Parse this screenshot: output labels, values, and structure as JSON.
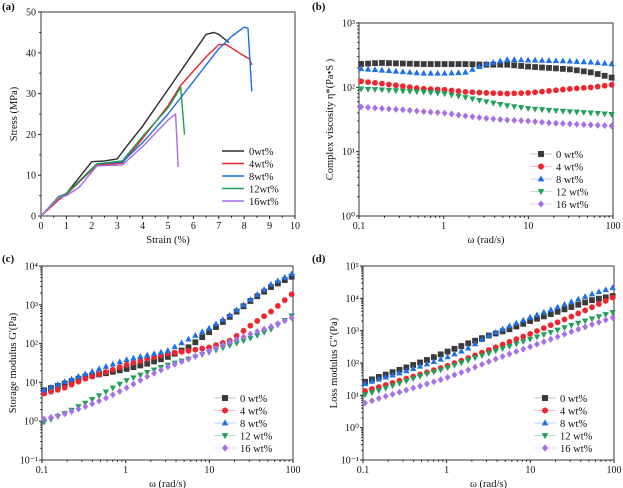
{
  "chart_data": [
    {
      "panel": "(a)",
      "type": "line",
      "xlabel": "Strain (%)",
      "ylabel": "Stress (MPa)",
      "xlim": [
        0,
        10
      ],
      "ylim": [
        0,
        50
      ],
      "xscale": "linear",
      "yscale": "linear",
      "xticks": [
        0,
        1,
        2,
        3,
        4,
        5,
        6,
        7,
        8,
        9,
        10
      ],
      "yticks": [
        0,
        10,
        20,
        30,
        40,
        50
      ],
      "legend_position": "bottom-right",
      "series": [
        {
          "name": "0wt%",
          "color": "#2b2b2b",
          "points": [
            [
              0,
              0
            ],
            [
              0.7,
              4.5
            ],
            [
              1,
              5.5
            ],
            [
              2,
              13.3
            ],
            [
              2.5,
              13.5
            ],
            [
              3,
              14
            ],
            [
              3.3,
              16.5
            ],
            [
              4,
              22
            ],
            [
              5,
              31
            ],
            [
              6,
              40
            ],
            [
              6.5,
              44.5
            ],
            [
              6.8,
              45
            ],
            [
              7,
              44.5
            ],
            [
              7.4,
              42.5
            ]
          ]
        },
        {
          "name": "4wt%",
          "color": "#e8222b",
          "points": [
            [
              0,
              0
            ],
            [
              0.7,
              4
            ],
            [
              1,
              5.3
            ],
            [
              2.2,
              12.5
            ],
            [
              3.2,
              13
            ],
            [
              4,
              19
            ],
            [
              5,
              27
            ],
            [
              5.5,
              32
            ],
            [
              6.5,
              39
            ],
            [
              7,
              42
            ],
            [
              7.3,
              42
            ],
            [
              7.8,
              40
            ],
            [
              8.2,
              38.5
            ],
            [
              8.3,
              37
            ]
          ]
        },
        {
          "name": "8wt%",
          "color": "#1d6fe3",
          "points": [
            [
              0,
              0
            ],
            [
              0.7,
              4.5
            ],
            [
              1,
              5.5
            ],
            [
              2.2,
              12.8
            ],
            [
              3.2,
              13.2
            ],
            [
              4,
              18
            ],
            [
              5,
              25
            ],
            [
              6,
              33
            ],
            [
              7,
              41
            ],
            [
              7.5,
              44
            ],
            [
              8,
              46.3
            ],
            [
              8.15,
              46
            ],
            [
              8.3,
              30.5
            ]
          ]
        },
        {
          "name": "12wt%",
          "color": "#1f9e52",
          "points": [
            [
              0,
              0
            ],
            [
              0.7,
              4.8
            ],
            [
              1,
              5.5
            ],
            [
              2.2,
              12.8
            ],
            [
              3.2,
              13.5
            ],
            [
              4,
              19.5
            ],
            [
              5,
              26.5
            ],
            [
              5.5,
              31.5
            ],
            [
              5.65,
              20
            ]
          ]
        },
        {
          "name": "16wt%",
          "color": "#a36ee8",
          "points": [
            [
              0,
              0
            ],
            [
              0.7,
              4.5
            ],
            [
              1,
              5
            ],
            [
              1.5,
              7
            ],
            [
              2.2,
              12.3
            ],
            [
              3.2,
              12.5
            ],
            [
              4,
              17
            ],
            [
              5,
              23.5
            ],
            [
              5.3,
              25
            ],
            [
              5.4,
              12
            ]
          ]
        }
      ]
    },
    {
      "panel": "(b)",
      "type": "scatter",
      "xlabel": "ω (rad/s)",
      "ylabel": "Complex viscosity η*(Pa•S )",
      "xlim": [
        0.1,
        100
      ],
      "ylim": [
        1,
        1000
      ],
      "xscale": "log",
      "yscale": "log",
      "xtick_labels": [
        "0.1",
        "1",
        "10",
        "100"
      ],
      "ytick_labels": [
        "10⁰",
        "10¹",
        "10²",
        "10³"
      ],
      "legend_position": "bottom-right",
      "x": [
        0.1,
        0.178,
        0.316,
        0.562,
        1,
        1.78,
        3.16,
        5.62,
        10,
        17.8,
        31.6,
        56.2,
        100
      ],
      "series": [
        {
          "name": "0 wt%",
          "color": "#3a3a3a",
          "marker": "square",
          "values": [
            230,
            240,
            235,
            230,
            230,
            230,
            225,
            225,
            210,
            200,
            190,
            170,
            140
          ]
        },
        {
          "name": "4 wt%",
          "color": "#f0252d",
          "marker": "circle",
          "values": [
            125,
            115,
            105,
            95,
            92,
            85,
            82,
            80,
            82,
            88,
            95,
            100,
            110
          ]
        },
        {
          "name": "8 wt%",
          "color": "#1f6fe6",
          "marker": "triangle-up",
          "values": [
            195,
            185,
            175,
            165,
            165,
            170,
            230,
            270,
            265,
            260,
            255,
            245,
            230
          ]
        },
        {
          "name": "12 wt%",
          "color": "#22a05a",
          "marker": "triangle-down",
          "values": [
            95,
            92,
            88,
            85,
            80,
            70,
            60,
            52,
            47,
            44,
            42,
            40,
            38
          ]
        },
        {
          "name": "16 wt%",
          "color": "#a670e8",
          "marker": "diamond",
          "values": [
            50,
            47,
            45,
            42,
            40,
            36,
            33,
            31,
            30,
            28,
            27,
            26,
            25
          ]
        }
      ]
    },
    {
      "panel": "(c)",
      "type": "scatter",
      "xlabel": "ω (rad/s)",
      "ylabel": "Storage modulus G'(Pa)",
      "xlim": [
        0.1,
        100
      ],
      "ylim": [
        0.1,
        10000
      ],
      "xscale": "log",
      "yscale": "log",
      "xtick_labels": [
        "0.1",
        "1",
        "10",
        "100"
      ],
      "ytick_labels": [
        "10⁻¹",
        "10⁰",
        "10¹",
        "10²",
        "10³",
        "10⁴"
      ],
      "legend_position": "bottom-right",
      "x": [
        0.1,
        0.178,
        0.316,
        0.562,
        1,
        1.78,
        3.16,
        5.62,
        10,
        17.8,
        31.6,
        56.2,
        100
      ],
      "series": [
        {
          "name": "0 wt%",
          "color": "#3a3a3a",
          "marker": "square",
          "values": [
            6,
            9,
            14,
            17,
            22,
            30,
            45,
            80,
            200,
            500,
            1300,
            3000,
            5500
          ]
        },
        {
          "name": "4 wt%",
          "color": "#f0252d",
          "marker": "circle",
          "values": [
            5,
            7,
            12,
            18,
            28,
            40,
            55,
            65,
            80,
            120,
            300,
            700,
            2000
          ]
        },
        {
          "name": "8 wt%",
          "color": "#1f6fe6",
          "marker": "triangle-up",
          "values": [
            6,
            10,
            16,
            25,
            38,
            50,
            65,
            130,
            250,
            550,
            1400,
            3500,
            6500
          ]
        },
        {
          "name": "12 wt%",
          "color": "#22a05a",
          "marker": "triangle-down",
          "values": [
            0.9,
            1.5,
            2.8,
            5.5,
            11,
            18,
            28,
            40,
            60,
            90,
            140,
            240,
            550
          ]
        },
        {
          "name": "16 wt%",
          "color": "#a670e8",
          "marker": "diamond",
          "values": [
            1.1,
            1.5,
            2.3,
            3.8,
            7,
            14,
            25,
            40,
            65,
            110,
            180,
            280,
            480
          ]
        }
      ]
    },
    {
      "panel": "(d)",
      "type": "scatter",
      "xlabel": "ω (rad/s)",
      "ylabel": "Loss modulus G\"(Pa)",
      "xlim": [
        0.1,
        100
      ],
      "ylim": [
        0.1,
        100000
      ],
      "xscale": "log",
      "yscale": "log",
      "xtick_labels": [
        "0.1",
        "1",
        "10",
        "100"
      ],
      "ytick_labels": [
        "10⁻¹",
        "10⁰",
        "10¹",
        "10²",
        "10³",
        "10⁴",
        "10⁵"
      ],
      "legend_position": "bottom-right",
      "x": [
        0.1,
        0.178,
        0.316,
        0.562,
        1,
        1.78,
        3.16,
        5.62,
        10,
        17.8,
        31.6,
        56.2,
        100
      ],
      "series": [
        {
          "name": "0 wt%",
          "color": "#3a3a3a",
          "marker": "square",
          "values": [
            25,
            42,
            70,
            120,
            220,
            400,
            700,
            1100,
            2000,
            3300,
            5500,
            9000,
            12000
          ]
        },
        {
          "name": "4 wt%",
          "color": "#f0252d",
          "marker": "circle",
          "values": [
            13,
            20,
            32,
            50,
            80,
            140,
            250,
            450,
            800,
            1500,
            2800,
            5500,
            11000
          ]
        },
        {
          "name": "8 wt%",
          "color": "#1f6fe6",
          "marker": "triangle-up",
          "values": [
            22,
            35,
            55,
            90,
            150,
            280,
            700,
            1400,
            2600,
            4500,
            8000,
            14000,
            22000
          ]
        },
        {
          "name": "12 wt%",
          "color": "#22a05a",
          "marker": "triangle-down",
          "values": [
            10,
            16,
            27,
            45,
            70,
            120,
            200,
            330,
            550,
            900,
            1500,
            2400,
            3800
          ]
        },
        {
          "name": "16 wt%",
          "color": "#a670e8",
          "marker": "diamond",
          "values": [
            5.5,
            9,
            14,
            22,
            35,
            60,
            110,
            190,
            320,
            550,
            950,
            1600,
            2600
          ]
        }
      ]
    }
  ]
}
